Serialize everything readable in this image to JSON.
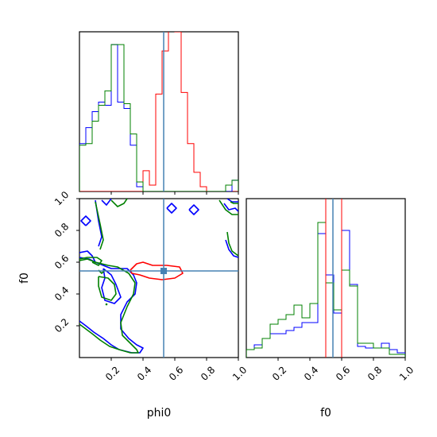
{
  "chart_data": {
    "type": "corner",
    "parameters": [
      "phi0",
      "f0"
    ],
    "xlabels": {
      "phi0": "phi0",
      "f0": "f0"
    },
    "ylabel": "f0",
    "axis_range": [
      0,
      1
    ],
    "tick_labels": [
      "0.2",
      "0.4",
      "0.6",
      "0.8",
      "1.0"
    ],
    "truth": {
      "phi0": 0.53,
      "f0": 0.545
    },
    "colors": {
      "red": "#ff0000",
      "blue": "#0000ff",
      "green": "#008000",
      "truth": "#4682b4"
    },
    "hist_phi0": {
      "bin_width": 0.04,
      "edges": [
        0.0,
        0.04,
        0.08,
        0.12,
        0.16,
        0.2,
        0.24,
        0.28,
        0.32,
        0.36,
        0.4,
        0.44,
        0.48,
        0.52,
        0.56,
        0.6,
        0.64,
        0.68,
        0.72,
        0.76,
        0.8,
        0.84,
        0.88,
        0.92,
        0.96
      ],
      "red": [
        0,
        0,
        0,
        0,
        0,
        0,
        0,
        0,
        0,
        0,
        0.13,
        0.04,
        0.61,
        0.88,
        1.05,
        1.0,
        0.62,
        0.3,
        0.12,
        0.03,
        0.0,
        0.0,
        0.0,
        0.0,
        0.0
      ],
      "blue": [
        0.3,
        0.4,
        0.5,
        0.56,
        0.54,
        0.92,
        0.56,
        0.52,
        0.29,
        0.03,
        0,
        0,
        0,
        0,
        0,
        0,
        0,
        0,
        0,
        0,
        0,
        0,
        0,
        0,
        0.07
      ],
      "green": [
        0.29,
        0.3,
        0.44,
        0.54,
        0.63,
        0.92,
        0.92,
        0.55,
        0.36,
        0.06,
        0,
        0,
        0,
        0,
        0,
        0,
        0,
        0,
        0,
        0,
        0,
        0,
        0,
        0.04,
        0.07
      ]
    },
    "hist_f0": {
      "edges": [
        0.0,
        0.05,
        0.1,
        0.15,
        0.2,
        0.25,
        0.3,
        0.35,
        0.4,
        0.45,
        0.5,
        0.55,
        0.6,
        0.65,
        0.7,
        0.75,
        0.8,
        0.85,
        0.9,
        0.95
      ],
      "blue": [
        0.05,
        0.08,
        0.12,
        0.15,
        0.15,
        0.17,
        0.19,
        0.22,
        0.22,
        0.78,
        0.52,
        0.28,
        0.8,
        0.46,
        0.07,
        0.06,
        0.06,
        0.09,
        0.05,
        0.03
      ],
      "green": [
        0.05,
        0.06,
        0.12,
        0.21,
        0.24,
        0.27,
        0.33,
        0.25,
        0.34,
        0.85,
        0.47,
        0.3,
        0.55,
        0.45,
        0.09,
        0.09,
        0.06,
        0.06,
        0.02,
        0.02
      ],
      "red_lines": [
        0.5,
        0.6
      ]
    },
    "contours_2d": {
      "red": [
        [
          [
            0.32,
            0.55
          ],
          [
            0.36,
            0.59
          ],
          [
            0.4,
            0.6
          ],
          [
            0.46,
            0.58
          ],
          [
            0.55,
            0.58
          ],
          [
            0.63,
            0.57
          ],
          [
            0.65,
            0.53
          ],
          [
            0.6,
            0.5
          ],
          [
            0.52,
            0.49
          ],
          [
            0.44,
            0.5
          ],
          [
            0.38,
            0.52
          ],
          [
            0.33,
            0.53
          ],
          [
            0.32,
            0.55
          ]
        ]
      ],
      "blue": [
        [
          [
            0.0,
            0.66
          ],
          [
            0.05,
            0.67
          ],
          [
            0.08,
            0.64
          ],
          [
            0.1,
            0.6
          ],
          [
            0.15,
            0.58
          ],
          [
            0.2,
            0.56
          ],
          [
            0.3,
            0.56
          ],
          [
            0.34,
            0.52
          ],
          [
            0.36,
            0.47
          ],
          [
            0.35,
            0.4
          ],
          [
            0.3,
            0.35
          ],
          [
            0.26,
            0.27
          ],
          [
            0.26,
            0.18
          ],
          [
            0.31,
            0.12
          ],
          [
            0.36,
            0.08
          ],
          [
            0.4,
            0.06
          ],
          [
            0.38,
            0.03
          ],
          [
            0.33,
            0.03
          ],
          [
            0.25,
            0.05
          ],
          [
            0.2,
            0.08
          ],
          [
            0.15,
            0.12
          ],
          [
            0.09,
            0.16
          ],
          [
            0.04,
            0.2
          ],
          [
            0.0,
            0.23
          ]
        ],
        [
          [
            0.0,
            0.63
          ],
          [
            0.06,
            0.62
          ],
          [
            0.1,
            0.6
          ]
        ],
        [
          [
            0.15,
            0.56
          ],
          [
            0.2,
            0.52
          ],
          [
            0.23,
            0.46
          ],
          [
            0.26,
            0.38
          ],
          [
            0.22,
            0.34
          ],
          [
            0.16,
            0.36
          ],
          [
            0.14,
            0.44
          ],
          [
            0.16,
            0.5
          ],
          [
            0.15,
            0.56
          ]
        ],
        [
          [
            0.14,
            0.99
          ],
          [
            0.17,
            0.96
          ],
          [
            0.2,
            1.0
          ]
        ],
        [
          [
            0.04,
            0.83
          ],
          [
            0.07,
            0.86
          ],
          [
            0.04,
            0.89
          ],
          [
            0.01,
            0.86
          ],
          [
            0.04,
            0.83
          ]
        ],
        [
          [
            0.55,
            0.94
          ],
          [
            0.58,
            0.91
          ],
          [
            0.61,
            0.94
          ],
          [
            0.58,
            0.97
          ],
          [
            0.55,
            0.94
          ]
        ],
        [
          [
            0.69,
            0.93
          ],
          [
            0.72,
            0.9
          ],
          [
            0.75,
            0.93
          ],
          [
            0.72,
            0.96
          ],
          [
            0.69,
            0.93
          ]
        ],
        [
          [
            0.91,
            0.97
          ],
          [
            0.94,
            0.93
          ],
          [
            0.98,
            0.94
          ],
          [
            1.0,
            0.92
          ]
        ],
        [
          [
            0.93,
            1.0
          ],
          [
            0.96,
            0.98
          ],
          [
            1.0,
            0.98
          ]
        ],
        [
          [
            0.92,
            0.74
          ],
          [
            0.94,
            0.68
          ],
          [
            0.97,
            0.64
          ],
          [
            1.0,
            0.63
          ]
        ],
        [
          [
            0.1,
            0.99
          ],
          [
            0.12,
            0.86
          ],
          [
            0.14,
            0.76
          ],
          [
            0.12,
            0.7
          ]
        ]
      ],
      "green": [
        [
          [
            0.0,
            0.61
          ],
          [
            0.05,
            0.62
          ],
          [
            0.1,
            0.6
          ],
          [
            0.14,
            0.59
          ],
          [
            0.18,
            0.58
          ],
          [
            0.24,
            0.57
          ],
          [
            0.31,
            0.53
          ],
          [
            0.35,
            0.47
          ],
          [
            0.34,
            0.4
          ],
          [
            0.3,
            0.32
          ],
          [
            0.26,
            0.22
          ],
          [
            0.27,
            0.14
          ],
          [
            0.32,
            0.09
          ],
          [
            0.36,
            0.05
          ],
          [
            0.37,
            0.03
          ],
          [
            0.32,
            0.03
          ],
          [
            0.25,
            0.05
          ],
          [
            0.19,
            0.07
          ],
          [
            0.13,
            0.11
          ],
          [
            0.08,
            0.15
          ],
          [
            0.04,
            0.18
          ],
          [
            0.0,
            0.21
          ]
        ],
        [
          [
            0.0,
            0.62
          ],
          [
            0.05,
            0.63
          ],
          [
            0.11,
            0.63
          ],
          [
            0.14,
            0.61
          ],
          [
            0.12,
            0.58
          ],
          [
            0.08,
            0.6
          ]
        ],
        [
          [
            0.12,
            0.51
          ],
          [
            0.18,
            0.5
          ],
          [
            0.22,
            0.46
          ],
          [
            0.23,
            0.4
          ],
          [
            0.2,
            0.36
          ],
          [
            0.14,
            0.38
          ],
          [
            0.12,
            0.45
          ],
          [
            0.12,
            0.51
          ]
        ],
        [
          [
            0.12,
            0.55
          ],
          [
            0.14,
            0.53
          ],
          [
            0.16,
            0.55
          ]
        ],
        [
          [
            0.2,
            0.99
          ],
          [
            0.24,
            0.95
          ],
          [
            0.28,
            0.97
          ],
          [
            0.3,
            1.0
          ]
        ],
        [
          [
            0.88,
            0.99
          ],
          [
            0.92,
            0.93
          ],
          [
            0.96,
            0.9
          ],
          [
            1.0,
            0.9
          ]
        ],
        [
          [
            0.93,
            0.79
          ],
          [
            0.94,
            0.72
          ],
          [
            0.96,
            0.67
          ],
          [
            1.0,
            0.64
          ]
        ],
        [
          [
            0.95,
            0.98
          ],
          [
            0.97,
            0.97
          ],
          [
            1.0,
            0.97
          ]
        ],
        [
          [
            0.1,
            0.98
          ],
          [
            0.13,
            0.84
          ],
          [
            0.15,
            0.74
          ],
          [
            0.13,
            0.68
          ]
        ]
      ],
      "green_point": [
        0.17,
        0.335
      ]
    }
  }
}
